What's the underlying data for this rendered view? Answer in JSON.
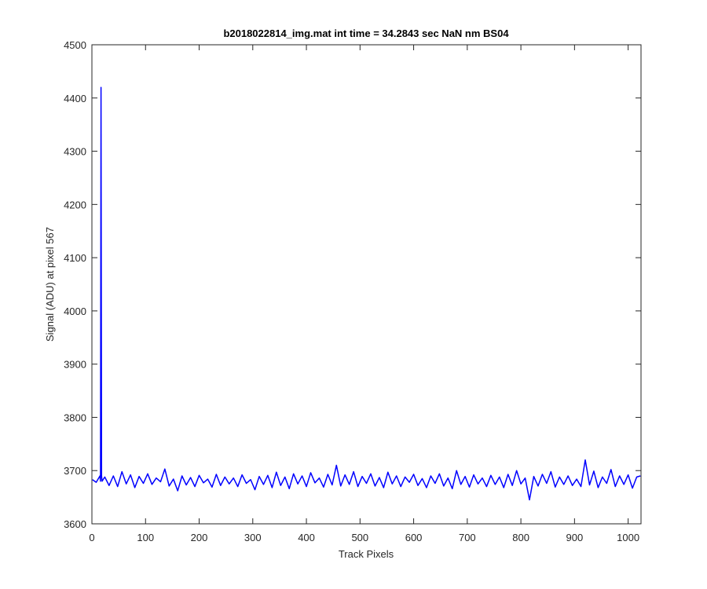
{
  "chart_data": {
    "type": "line",
    "title": "b2018022814_img.mat int time = 34.2843 sec  NaN nm BS04",
    "x_label": "Track Pixels",
    "y_label": "Signal (ADU) at pixel 567",
    "color": "#0000ff",
    "grid": false,
    "xlim": [
      0,
      1024
    ],
    "ylim": [
      3600,
      4500
    ],
    "xticks": [
      0,
      100,
      200,
      300,
      400,
      500,
      600,
      700,
      800,
      900,
      1000
    ],
    "yticks": [
      3600,
      3700,
      3800,
      3900,
      4000,
      4100,
      4200,
      4300,
      4400,
      4500
    ],
    "x": [
      1,
      8,
      15,
      16,
      17,
      18,
      19,
      24,
      32,
      40,
      48,
      56,
      64,
      72,
      80,
      88,
      96,
      104,
      112,
      120,
      128,
      136,
      144,
      152,
      160,
      168,
      176,
      184,
      192,
      200,
      208,
      216,
      224,
      232,
      240,
      248,
      256,
      264,
      272,
      280,
      288,
      296,
      304,
      312,
      320,
      328,
      336,
      344,
      352,
      360,
      368,
      376,
      384,
      392,
      400,
      408,
      416,
      424,
      432,
      440,
      448,
      456,
      464,
      472,
      480,
      488,
      496,
      504,
      512,
      520,
      528,
      536,
      544,
      552,
      560,
      568,
      576,
      584,
      592,
      600,
      608,
      616,
      624,
      632,
      640,
      648,
      656,
      664,
      672,
      680,
      688,
      696,
      704,
      712,
      720,
      728,
      736,
      744,
      752,
      760,
      768,
      776,
      784,
      792,
      800,
      808,
      816,
      824,
      832,
      840,
      848,
      856,
      864,
      872,
      880,
      888,
      896,
      904,
      912,
      920,
      928,
      936,
      944,
      952,
      960,
      968,
      976,
      984,
      992,
      1000,
      1008,
      1016,
      1023
    ],
    "values": [
      3683,
      3678,
      3690,
      3680,
      4420,
      3690,
      3680,
      3688,
      3672,
      3690,
      3670,
      3698,
      3675,
      3692,
      3668,
      3689,
      3676,
      3694,
      3674,
      3686,
      3679,
      3703,
      3671,
      3684,
      3662,
      3690,
      3673,
      3687,
      3670,
      3691,
      3677,
      3684,
      3669,
      3693,
      3672,
      3688,
      3675,
      3686,
      3670,
      3692,
      3676,
      3683,
      3664,
      3689,
      3674,
      3691,
      3668,
      3697,
      3672,
      3688,
      3666,
      3694,
      3675,
      3690,
      3670,
      3696,
      3677,
      3686,
      3669,
      3693,
      3673,
      3710,
      3671,
      3692,
      3674,
      3698,
      3670,
      3689,
      3676,
      3694,
      3671,
      3687,
      3668,
      3697,
      3675,
      3690,
      3670,
      3688,
      3678,
      3693,
      3672,
      3685,
      3668,
      3690,
      3676,
      3694,
      3671,
      3686,
      3666,
      3700,
      3674,
      3689,
      3669,
      3692,
      3675,
      3686,
      3670,
      3691,
      3674,
      3688,
      3668,
      3693,
      3672,
      3700,
      3675,
      3686,
      3645,
      3689,
      3671,
      3693,
      3676,
      3698,
      3669,
      3688,
      3674,
      3690,
      3672,
      3684,
      3670,
      3720,
      3673,
      3699,
      3668,
      3688,
      3676,
      3702,
      3670,
      3690,
      3674,
      3692,
      3667,
      3688,
      3690
    ]
  }
}
